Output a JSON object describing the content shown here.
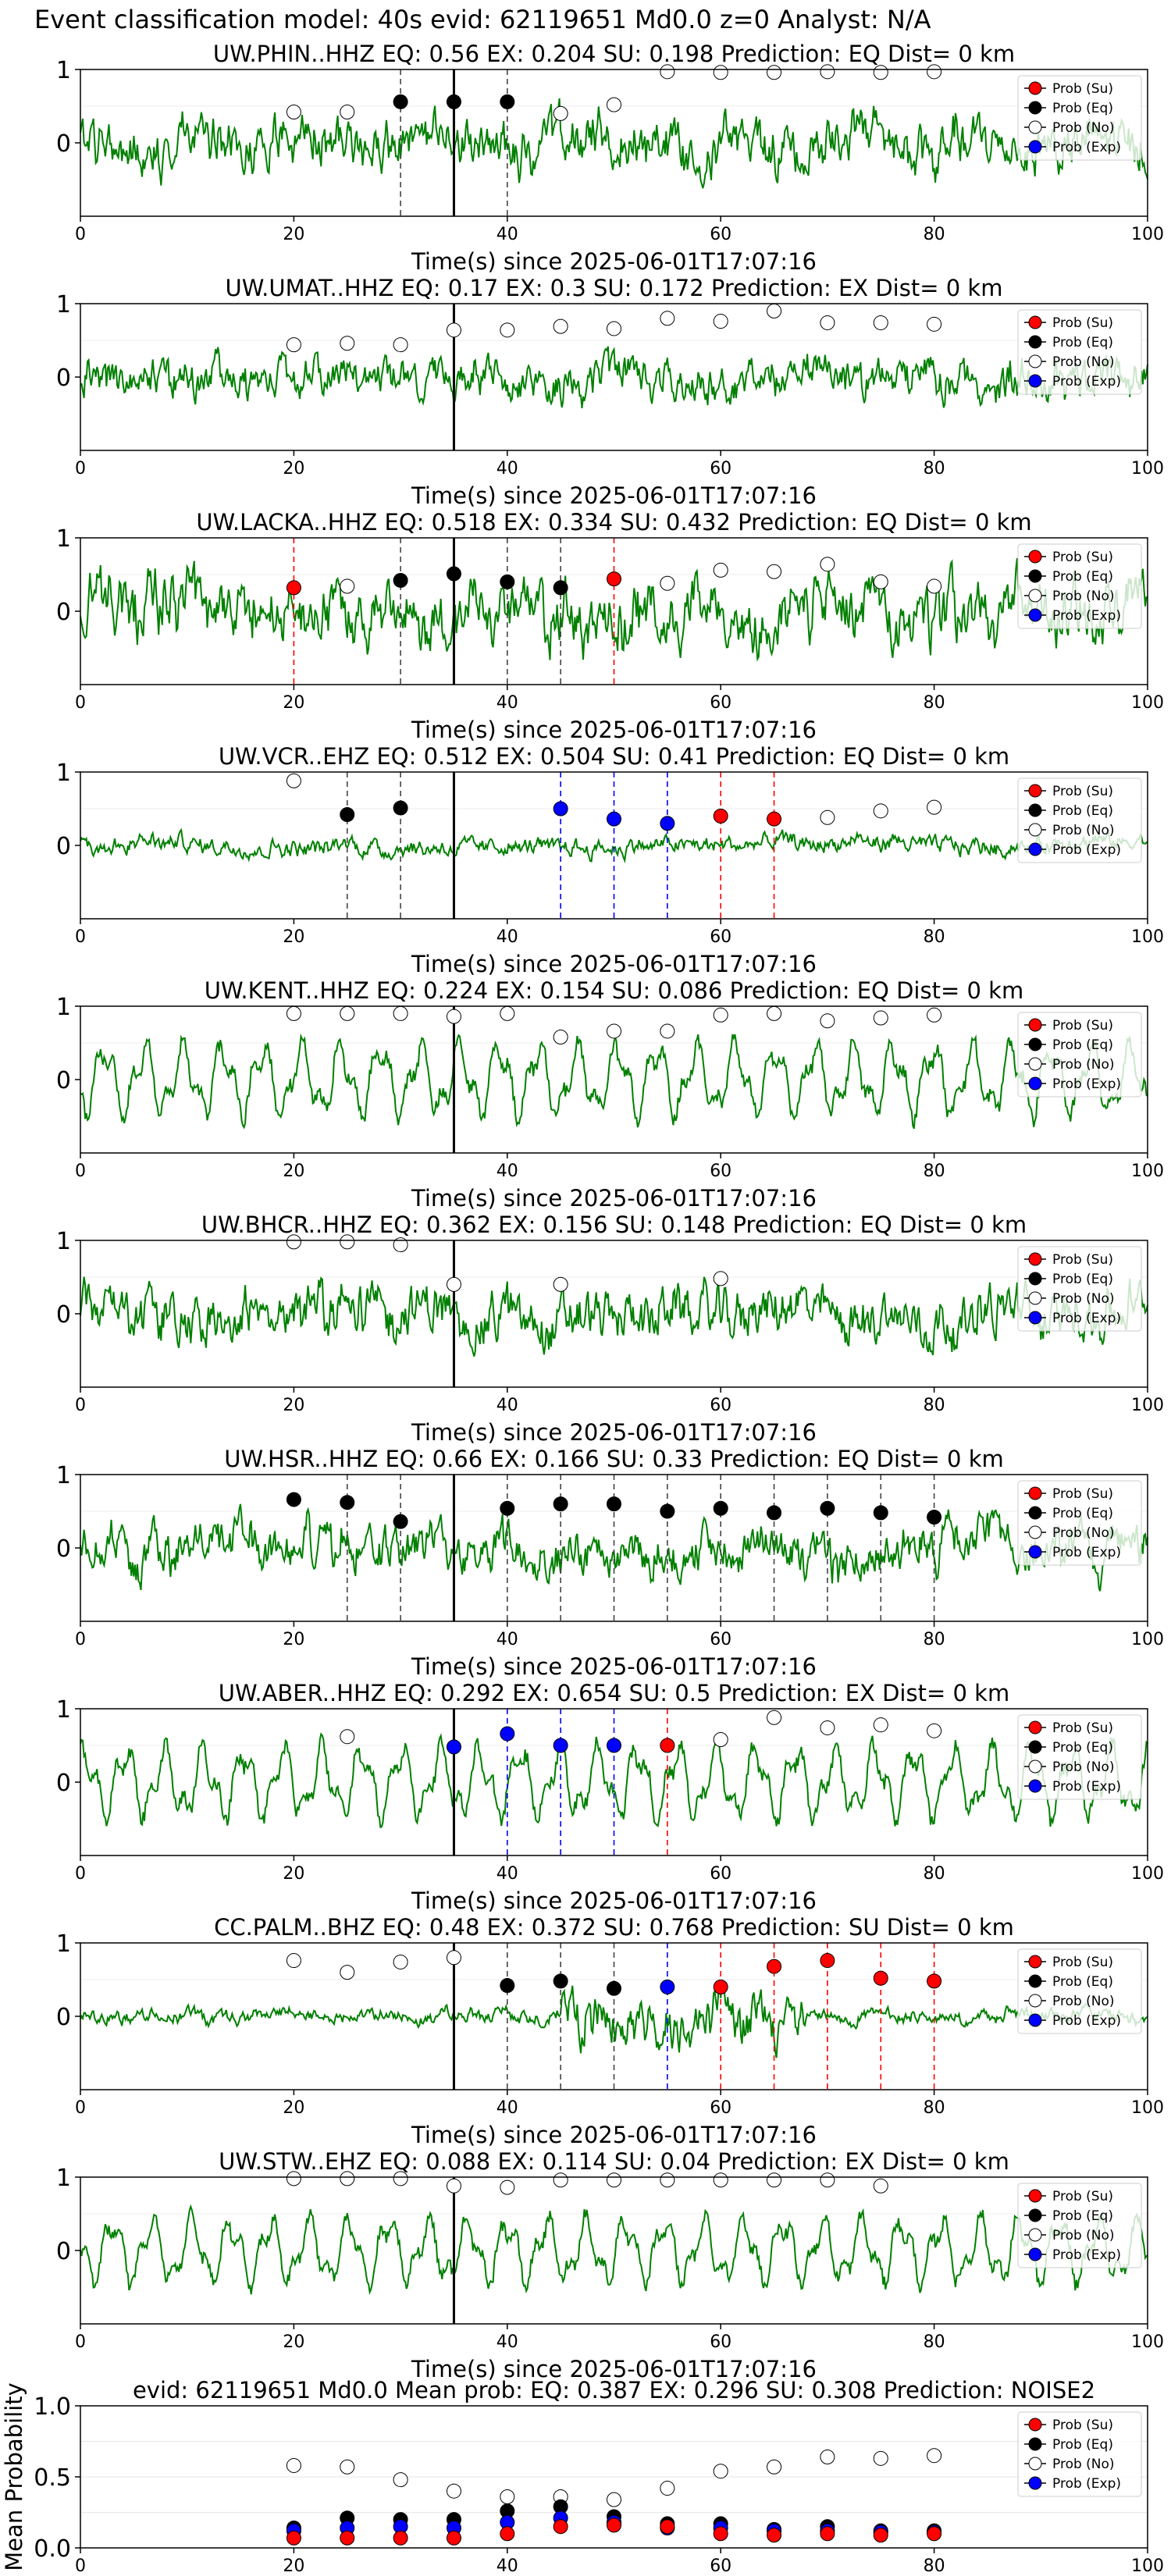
{
  "figure": {
    "suptitle": "Event classification model: 40s evid: 62119651 Md0.0 z=0 Analyst: N/A"
  },
  "legend_labels": [
    "Prob (Su)",
    "Prob (Eq)",
    "Prob (No)",
    "Prob (Exp)"
  ],
  "colors": {
    "su": "#ff0000",
    "eq": "#000000",
    "no": "#ffffff",
    "exp": "#0000ff",
    "waveform": "#008000",
    "pick_line": "#000000"
  },
  "chart_data": [
    {
      "type": "line",
      "title": "UW.PHIN..HHZ   EQ: 0.56  EX: 0.204  SU: 0.198   Prediction: EQ    Dist= 0 km",
      "xlabel": "Time(s) since 2025-06-01T17:07:16",
      "xlim": [
        0,
        100
      ],
      "ylim": [
        -1,
        1
      ],
      "xticks": [
        "0",
        "20",
        "40",
        "60",
        "80",
        "100"
      ],
      "yticks": [
        "1",
        "0"
      ],
      "pick_time": 35,
      "noise_level": 0.45,
      "noise_style": "broad",
      "points": {
        "no": [
          [
            20,
            0.42
          ],
          [
            25,
            0.42
          ],
          [
            45,
            0.4
          ],
          [
            50,
            0.52
          ],
          [
            55,
            0.97
          ],
          [
            60,
            0.96
          ],
          [
            65,
            0.96
          ],
          [
            70,
            0.97
          ],
          [
            75,
            0.96
          ],
          [
            80,
            0.97
          ]
        ],
        "eq": [
          [
            30,
            0.56
          ],
          [
            35,
            0.56
          ],
          [
            40,
            0.56
          ]
        ],
        "su": [],
        "exp": []
      },
      "vlines": [
        {
          "x": 30,
          "cls": "eq"
        },
        {
          "x": 40,
          "cls": "eq"
        }
      ]
    },
    {
      "type": "line",
      "title": "UW.UMAT..HHZ   EQ: 0.17  EX: 0.3  SU: 0.172   Prediction: EX    Dist= 0 km",
      "xlabel": "Time(s) since 2025-06-01T17:07:16",
      "xlim": [
        0,
        100
      ],
      "ylim": [
        -1,
        1
      ],
      "xticks": [
        "0",
        "20",
        "40",
        "60",
        "80",
        "100"
      ],
      "yticks": [
        "1",
        "0"
      ],
      "pick_time": 35,
      "noise_level": 0.35,
      "noise_style": "broad",
      "points": {
        "no": [
          [
            20,
            0.44
          ],
          [
            25,
            0.46
          ],
          [
            30,
            0.44
          ],
          [
            35,
            0.64
          ],
          [
            40,
            0.64
          ],
          [
            45,
            0.69
          ],
          [
            50,
            0.66
          ],
          [
            55,
            0.8
          ],
          [
            60,
            0.76
          ],
          [
            65,
            0.9
          ],
          [
            70,
            0.74
          ],
          [
            75,
            0.74
          ],
          [
            80,
            0.72
          ]
        ],
        "eq": [],
        "su": [],
        "exp": []
      },
      "vlines": []
    },
    {
      "type": "line",
      "title": "UW.LACKA..HHZ   EQ: 0.518  EX: 0.334  SU: 0.432   Prediction: EQ    Dist= 0 km",
      "xlabel": "Time(s) since 2025-06-01T17:07:16",
      "xlim": [
        0,
        100
      ],
      "ylim": [
        -1,
        1
      ],
      "xticks": [
        "0",
        "20",
        "40",
        "60",
        "80",
        "100"
      ],
      "yticks": [
        "1",
        "0"
      ],
      "pick_time": 35,
      "noise_level": 0.55,
      "noise_style": "broad",
      "points": {
        "no": [
          [
            25,
            0.34
          ],
          [
            55,
            0.38
          ],
          [
            60,
            0.56
          ],
          [
            65,
            0.54
          ],
          [
            70,
            0.64
          ],
          [
            75,
            0.4
          ],
          [
            80,
            0.34
          ]
        ],
        "eq": [
          [
            30,
            0.42
          ],
          [
            35,
            0.51
          ],
          [
            40,
            0.4
          ],
          [
            45,
            0.32
          ]
        ],
        "su": [
          [
            20,
            0.32
          ],
          [
            50,
            0.44
          ]
        ],
        "exp": []
      },
      "vlines": [
        {
          "x": 20,
          "cls": "su"
        },
        {
          "x": 30,
          "cls": "eq"
        },
        {
          "x": 40,
          "cls": "eq"
        },
        {
          "x": 45,
          "cls": "eq"
        },
        {
          "x": 50,
          "cls": "su"
        }
      ]
    },
    {
      "type": "line",
      "title": "UW.VCR..EHZ   EQ: 0.512  EX: 0.504  SU: 0.41   Prediction: EQ    Dist= 0 km",
      "xlabel": "Time(s) since 2025-06-01T17:07:16",
      "xlim": [
        0,
        100
      ],
      "ylim": [
        -1,
        1
      ],
      "xticks": [
        "0",
        "20",
        "40",
        "60",
        "80",
        "100"
      ],
      "yticks": [
        "1",
        "0"
      ],
      "pick_time": 35,
      "noise_level": 0.15,
      "noise_style": "broad",
      "points": {
        "no": [
          [
            20,
            0.88
          ],
          [
            70,
            0.38
          ],
          [
            75,
            0.47
          ],
          [
            80,
            0.52
          ]
        ],
        "eq": [
          [
            25,
            0.42
          ],
          [
            30,
            0.51
          ]
        ],
        "su": [
          [
            60,
            0.4
          ],
          [
            65,
            0.36
          ]
        ],
        "exp": [
          [
            45,
            0.5
          ],
          [
            50,
            0.36
          ],
          [
            55,
            0.3
          ]
        ]
      },
      "vlines": [
        {
          "x": 25,
          "cls": "eq"
        },
        {
          "x": 30,
          "cls": "eq"
        },
        {
          "x": 45,
          "cls": "exp"
        },
        {
          "x": 50,
          "cls": "exp"
        },
        {
          "x": 55,
          "cls": "exp"
        },
        {
          "x": 60,
          "cls": "su"
        },
        {
          "x": 65,
          "cls": "su"
        }
      ]
    },
    {
      "type": "line",
      "title": "UW.KENT..HHZ   EQ: 0.224  EX: 0.154  SU: 0.086   Prediction: EQ    Dist= 0 km",
      "xlabel": "Time(s) since 2025-06-01T17:07:16",
      "xlim": [
        0,
        100
      ],
      "ylim": [
        -1,
        1
      ],
      "xticks": [
        "0",
        "20",
        "40",
        "60",
        "80",
        "100"
      ],
      "yticks": [
        "1",
        "0"
      ],
      "pick_time": 35,
      "noise_level": 0.55,
      "noise_style": "smooth",
      "points": {
        "no": [
          [
            20,
            0.9
          ],
          [
            25,
            0.9
          ],
          [
            30,
            0.9
          ],
          [
            35,
            0.86
          ],
          [
            40,
            0.9
          ],
          [
            45,
            0.58
          ],
          [
            50,
            0.66
          ],
          [
            55,
            0.66
          ],
          [
            60,
            0.88
          ],
          [
            65,
            0.9
          ],
          [
            70,
            0.8
          ],
          [
            75,
            0.84
          ],
          [
            80,
            0.88
          ]
        ],
        "eq": [],
        "su": [],
        "exp": []
      },
      "vlines": []
    },
    {
      "type": "line",
      "title": "UW.BHCR..HHZ   EQ: 0.362  EX: 0.156  SU: 0.148   Prediction: EQ    Dist= 0 km",
      "xlabel": "Time(s) since 2025-06-01T17:07:16",
      "xlim": [
        0,
        100
      ],
      "ylim": [
        -1,
        1
      ],
      "xticks": [
        "0",
        "20",
        "40",
        "60",
        "80",
        "100"
      ],
      "yticks": [
        "1",
        "0"
      ],
      "pick_time": 35,
      "noise_level": 0.45,
      "noise_style": "broad",
      "points": {
        "no": [
          [
            20,
            0.98
          ],
          [
            25,
            0.98
          ],
          [
            30,
            0.94
          ],
          [
            35,
            0.4
          ],
          [
            45,
            0.4
          ],
          [
            60,
            0.48
          ]
        ],
        "eq": [],
        "su": [],
        "exp": []
      },
      "vlines": []
    },
    {
      "type": "line",
      "title": "UW.HSR..HHZ   EQ: 0.66  EX: 0.166  SU: 0.33   Prediction: EQ    Dist= 0 km",
      "xlabel": "Time(s) since 2025-06-01T17:07:16",
      "xlim": [
        0,
        100
      ],
      "ylim": [
        -1,
        1
      ],
      "xticks": [
        "0",
        "20",
        "40",
        "60",
        "80",
        "100"
      ],
      "yticks": [
        "1",
        "0"
      ],
      "pick_time": 35,
      "noise_level": 0.4,
      "noise_style": "broad",
      "points": {
        "no": [],
        "eq": [
          [
            20,
            0.66
          ],
          [
            25,
            0.62
          ],
          [
            30,
            0.36
          ],
          [
            40,
            0.54
          ],
          [
            45,
            0.6
          ],
          [
            50,
            0.6
          ],
          [
            55,
            0.5
          ],
          [
            60,
            0.54
          ],
          [
            65,
            0.48
          ],
          [
            70,
            0.54
          ],
          [
            75,
            0.48
          ],
          [
            80,
            0.42
          ]
        ],
        "su": [],
        "exp": []
      },
      "vlines": [
        {
          "x": 25,
          "cls": "eq"
        },
        {
          "x": 30,
          "cls": "eq"
        },
        {
          "x": 40,
          "cls": "eq"
        },
        {
          "x": 45,
          "cls": "eq"
        },
        {
          "x": 50,
          "cls": "eq"
        },
        {
          "x": 55,
          "cls": "eq"
        },
        {
          "x": 60,
          "cls": "eq"
        },
        {
          "x": 65,
          "cls": "eq"
        },
        {
          "x": 70,
          "cls": "eq"
        },
        {
          "x": 75,
          "cls": "eq"
        },
        {
          "x": 80,
          "cls": "eq"
        }
      ]
    },
    {
      "type": "line",
      "title": "UW.ABER..HHZ   EQ: 0.292  EX: 0.654  SU: 0.5   Prediction: EX    Dist= 0 km",
      "xlabel": "Time(s) since 2025-06-01T17:07:16",
      "xlim": [
        0,
        100
      ],
      "ylim": [
        -1,
        1
      ],
      "xticks": [
        "0",
        "20",
        "40",
        "60",
        "80",
        "100"
      ],
      "yticks": [
        "1",
        "0"
      ],
      "pick_time": 35,
      "noise_level": 0.55,
      "noise_style": "smooth",
      "points": {
        "no": [
          [
            25,
            0.62
          ],
          [
            60,
            0.58
          ],
          [
            65,
            0.88
          ],
          [
            70,
            0.74
          ],
          [
            75,
            0.78
          ],
          [
            80,
            0.7
          ]
        ],
        "eq": [],
        "su": [
          [
            55,
            0.5
          ]
        ],
        "exp": [
          [
            35,
            0.48
          ],
          [
            40,
            0.66
          ],
          [
            45,
            0.5
          ],
          [
            50,
            0.5
          ]
        ]
      },
      "vlines": [
        {
          "x": 40,
          "cls": "exp"
        },
        {
          "x": 45,
          "cls": "exp"
        },
        {
          "x": 50,
          "cls": "exp"
        },
        {
          "x": 55,
          "cls": "su"
        }
      ]
    },
    {
      "type": "line",
      "title": "CC.PALM..BHZ   EQ: 0.48  EX: 0.372  SU: 0.768   Prediction: SU    Dist= 0 km",
      "xlabel": "Time(s) since 2025-06-01T17:07:16",
      "xlim": [
        0,
        100
      ],
      "ylim": [
        -1,
        1
      ],
      "xticks": [
        "0",
        "20",
        "40",
        "60",
        "80",
        "100"
      ],
      "yticks": [
        "1",
        "0"
      ],
      "pick_time": 35,
      "noise_level": 0.12,
      "noise_style": "burst",
      "points": {
        "no": [
          [
            20,
            0.76
          ],
          [
            25,
            0.6
          ],
          [
            30,
            0.74
          ],
          [
            35,
            0.8
          ]
        ],
        "eq": [
          [
            40,
            0.42
          ],
          [
            45,
            0.48
          ],
          [
            50,
            0.38
          ]
        ],
        "su": [
          [
            60,
            0.4
          ],
          [
            65,
            0.68
          ],
          [
            70,
            0.76
          ],
          [
            75,
            0.52
          ],
          [
            80,
            0.48
          ]
        ],
        "exp": [
          [
            55,
            0.4
          ]
        ]
      },
      "vlines": [
        {
          "x": 40,
          "cls": "eq"
        },
        {
          "x": 45,
          "cls": "eq"
        },
        {
          "x": 50,
          "cls": "eq"
        },
        {
          "x": 55,
          "cls": "exp"
        },
        {
          "x": 60,
          "cls": "su"
        },
        {
          "x": 65,
          "cls": "su"
        },
        {
          "x": 70,
          "cls": "su"
        },
        {
          "x": 75,
          "cls": "su"
        },
        {
          "x": 80,
          "cls": "su"
        }
      ]
    },
    {
      "type": "line",
      "title": "UW.STW..EHZ   EQ: 0.088  EX: 0.114  SU: 0.04   Prediction: EX    Dist= 0 km",
      "xlabel": "Time(s) since 2025-06-01T17:07:16",
      "xlim": [
        0,
        100
      ],
      "ylim": [
        -1,
        1
      ],
      "xticks": [
        "0",
        "20",
        "40",
        "60",
        "80",
        "100"
      ],
      "yticks": [
        "1",
        "0"
      ],
      "pick_time": 35,
      "noise_level": 0.5,
      "noise_style": "smooth",
      "points": {
        "no": [
          [
            20,
            0.98
          ],
          [
            25,
            0.98
          ],
          [
            30,
            0.98
          ],
          [
            35,
            0.88
          ],
          [
            40,
            0.86
          ],
          [
            45,
            0.96
          ],
          [
            50,
            0.96
          ],
          [
            55,
            0.96
          ],
          [
            60,
            0.96
          ],
          [
            65,
            0.96
          ],
          [
            70,
            0.96
          ],
          [
            75,
            0.88
          ]
        ],
        "eq": [],
        "su": [],
        "exp": []
      },
      "vlines": []
    },
    {
      "type": "scatter",
      "title": "evid: 62119651   Md0.0    Mean prob:    EQ: 0.387   EX: 0.296   SU: 0.308    Prediction: NOISE2",
      "xlabel": "",
      "ylabel": "Mean Probability",
      "xlim": [
        0,
        100
      ],
      "ylim": [
        0,
        1
      ],
      "xticks": [
        "0",
        "20",
        "40",
        "60",
        "80",
        "100"
      ],
      "yticks": [
        "1.0",
        "0.5",
        "0.0"
      ],
      "points": {
        "no": [
          [
            20,
            0.58
          ],
          [
            25,
            0.57
          ],
          [
            30,
            0.48
          ],
          [
            35,
            0.4
          ],
          [
            40,
            0.36
          ],
          [
            45,
            0.36
          ],
          [
            50,
            0.34
          ],
          [
            55,
            0.42
          ],
          [
            60,
            0.54
          ],
          [
            65,
            0.57
          ],
          [
            70,
            0.64
          ],
          [
            75,
            0.63
          ],
          [
            80,
            0.65
          ]
        ],
        "eq": [
          [
            20,
            0.14
          ],
          [
            25,
            0.21
          ],
          [
            30,
            0.2
          ],
          [
            35,
            0.2
          ],
          [
            40,
            0.26
          ],
          [
            45,
            0.29
          ],
          [
            50,
            0.22
          ],
          [
            55,
            0.17
          ],
          [
            60,
            0.17
          ],
          [
            65,
            0.13
          ],
          [
            70,
            0.15
          ],
          [
            75,
            0.12
          ],
          [
            80,
            0.12
          ]
        ],
        "exp": [
          [
            20,
            0.12
          ],
          [
            25,
            0.14
          ],
          [
            30,
            0.15
          ],
          [
            35,
            0.14
          ],
          [
            40,
            0.18
          ],
          [
            45,
            0.21
          ],
          [
            50,
            0.18
          ],
          [
            55,
            0.14
          ],
          [
            60,
            0.14
          ],
          [
            65,
            0.12
          ],
          [
            70,
            0.12
          ],
          [
            75,
            0.11
          ],
          [
            80,
            0.11
          ]
        ],
        "su": [
          [
            20,
            0.07
          ],
          [
            25,
            0.07
          ],
          [
            30,
            0.07
          ],
          [
            35,
            0.07
          ],
          [
            40,
            0.1
          ],
          [
            45,
            0.15
          ],
          [
            50,
            0.16
          ],
          [
            55,
            0.15
          ],
          [
            60,
            0.1
          ],
          [
            65,
            0.09
          ],
          [
            70,
            0.1
          ],
          [
            75,
            0.09
          ],
          [
            80,
            0.1
          ]
        ]
      },
      "vlines": []
    }
  ]
}
